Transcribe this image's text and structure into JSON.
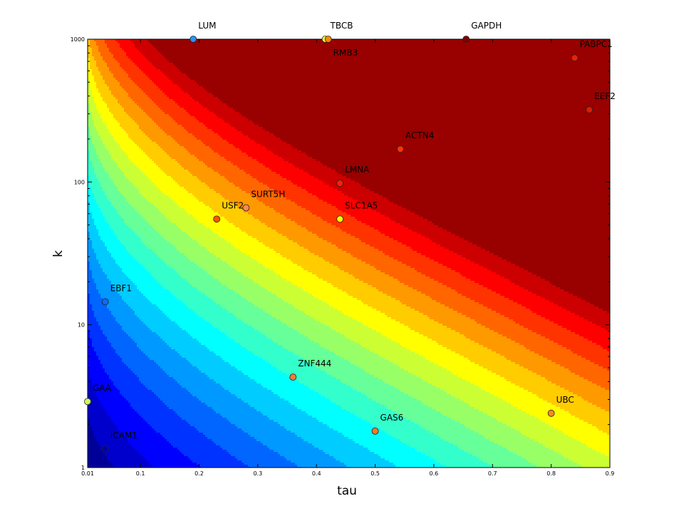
{
  "chart_data": {
    "type": "contour-scatter",
    "xlabel": "tau",
    "ylabel": "k",
    "x_scale": "linear",
    "y_scale": "log",
    "xlim": [
      0.01,
      0.9
    ],
    "ylim": [
      1,
      1000
    ],
    "x_ticks": [
      "0.01",
      "0.1",
      "0.2",
      "0.3",
      "0.4",
      "0.5",
      "0.6",
      "0.7",
      "0.8",
      "0.9"
    ],
    "x_tick_values": [
      0.01,
      0.1,
      0.2,
      0.3,
      0.4,
      0.5,
      0.6,
      0.7,
      0.8,
      0.9
    ],
    "y_ticks": [
      "1",
      "10",
      "100",
      "1000"
    ],
    "y_tick_values": [
      1,
      10,
      100,
      1000
    ],
    "grid": false,
    "colormap": "jet",
    "contour_levels": 20,
    "points": [
      {
        "name": "LUM",
        "tau": 0.19,
        "k": 1000,
        "color": "#2f8fff"
      },
      {
        "name": "TBCB",
        "tau": 0.415,
        "k": 1000,
        "color": "#ffff33"
      },
      {
        "name": "RMB3",
        "tau": 0.42,
        "k": 1000,
        "color": "#ff8800"
      },
      {
        "name": "GAPDH",
        "tau": 0.655,
        "k": 1000,
        "color": "#800000"
      },
      {
        "name": "PABPC1",
        "tau": 0.84,
        "k": 740,
        "color": "#ee2000"
      },
      {
        "name": "EEF2",
        "tau": 0.865,
        "k": 320,
        "color": "#e01a00"
      },
      {
        "name": "ACTN4",
        "tau": 0.543,
        "k": 170,
        "color": "#ff3300"
      },
      {
        "name": "LMNA",
        "tau": 0.44,
        "k": 98,
        "color": "#ff2200"
      },
      {
        "name": "SURT5H",
        "tau": 0.28,
        "k": 66,
        "color": "#ff8855"
      },
      {
        "name": "USF2",
        "tau": 0.23,
        "k": 55,
        "color": "#ff5500"
      },
      {
        "name": "SLC1A5",
        "tau": 0.44,
        "k": 55,
        "color": "#ffff00"
      },
      {
        "name": "EBF1",
        "tau": 0.04,
        "k": 14.5,
        "color": "#1466ff"
      },
      {
        "name": "ZNF444",
        "tau": 0.36,
        "k": 4.3,
        "color": "#ff7733"
      },
      {
        "name": "GAA",
        "tau": 0.01,
        "k": 2.9,
        "color": "#ccff55"
      },
      {
        "name": "UBC",
        "tau": 0.8,
        "k": 2.4,
        "color": "#ff8822"
      },
      {
        "name": "GAS6",
        "tau": 0.5,
        "k": 1.8,
        "color": "#ff7722"
      },
      {
        "name": "ICAM1",
        "tau": 0.04,
        "k": 1.35,
        "color": "#0000aa"
      }
    ]
  }
}
